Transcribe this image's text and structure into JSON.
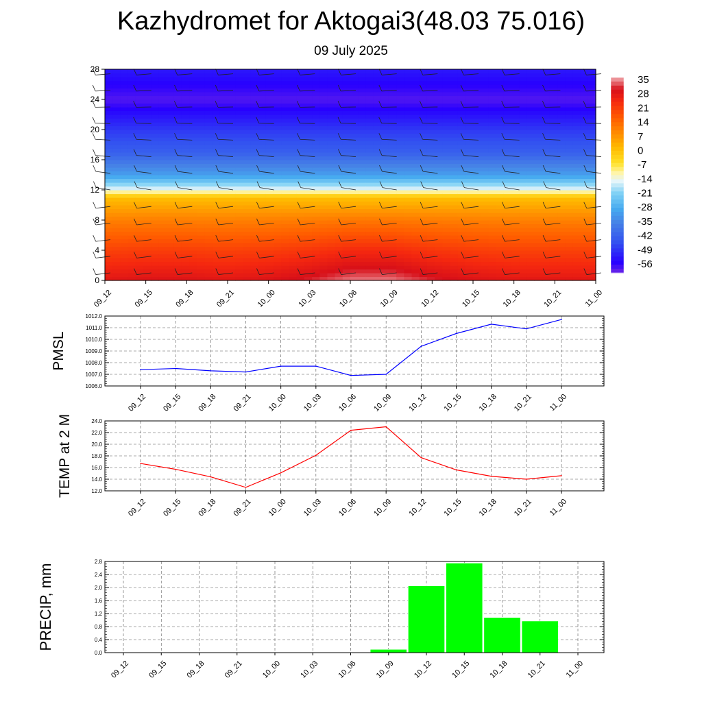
{
  "page": {
    "title": "Kazhydromet for Aktogai3(48.03 75.016)",
    "subtitle": "09 July 2025"
  },
  "chart_data": [
    {
      "id": "upper_air",
      "type": "heatmap",
      "variable": "temperature contours with wind barbs",
      "x": [
        "09_12",
        "09_15",
        "09_18",
        "09_21",
        "10_00",
        "10_03",
        "10_06",
        "10_09",
        "10_12",
        "10_15",
        "10_18",
        "10_21",
        "11_00"
      ],
      "y_ticks": [
        0,
        4,
        8,
        12,
        16,
        20,
        24,
        28
      ],
      "ylim": [
        0,
        28
      ],
      "colorbar": {
        "labels": [
          "35",
          "28",
          "21",
          "14",
          "7",
          "0",
          "-7",
          "-14",
          "-21",
          "-28",
          "-35",
          "-42",
          "-49",
          "-56"
        ],
        "range": [
          -60,
          38
        ]
      },
      "temperature_profile_by_level": [
        {
          "level": 0,
          "temp": 30
        },
        {
          "level": 4,
          "temp": 22
        },
        {
          "level": 8,
          "temp": 12
        },
        {
          "level": 11,
          "temp": 2
        },
        {
          "level": 12,
          "temp": -13
        },
        {
          "level": 14,
          "temp": -30
        },
        {
          "level": 17,
          "temp": -42
        },
        {
          "level": 20,
          "temp": -48
        },
        {
          "level": 22,
          "temp": -53
        },
        {
          "level": 24,
          "temp": -58
        },
        {
          "level": 26,
          "temp": -55
        },
        {
          "level": 28,
          "temp": -52
        }
      ],
      "surface_warming_by_time": [
        0,
        1,
        1,
        0,
        1,
        3,
        6,
        6,
        3,
        1,
        0,
        0,
        0
      ]
    },
    {
      "id": "pmsl",
      "type": "line",
      "ylabel": "PMSL",
      "x": [
        "09_12",
        "09_15",
        "09_18",
        "09_21",
        "10_00",
        "10_03",
        "10_06",
        "10_09",
        "10_12",
        "10_15",
        "10_18",
        "10_21",
        "11_00"
      ],
      "series": [
        {
          "color": "#0000ff",
          "values": [
            1007.4,
            1007.5,
            1007.3,
            1007.2,
            1007.7,
            1007.7,
            1006.9,
            1007.0,
            1009.4,
            1010.5,
            1011.3,
            1010.9,
            1011.7
          ]
        }
      ],
      "ylim": [
        1006.0,
        1012.0
      ],
      "y_ticks": [
        "1006.0",
        "1007.0",
        "1008.0",
        "1009.0",
        "1010.0",
        "1011.0",
        "1012.0"
      ]
    },
    {
      "id": "temp2m",
      "type": "line",
      "ylabel": "TEMP at 2 M",
      "x": [
        "09_12",
        "09_15",
        "09_18",
        "09_21",
        "10_00",
        "10_03",
        "10_06",
        "10_09",
        "10_12",
        "10_15",
        "10_18",
        "10_21",
        "11_00"
      ],
      "series": [
        {
          "color": "#ff0000",
          "values": [
            16.7,
            15.7,
            14.4,
            12.6,
            15.1,
            18.1,
            22.4,
            23.0,
            17.7,
            15.6,
            14.5,
            14.0,
            14.6
          ]
        }
      ],
      "ylim": [
        12.0,
        24.0
      ],
      "y_ticks": [
        "12.0",
        "14.0",
        "16.0",
        "18.0",
        "20.0",
        "22.0",
        "24.0"
      ]
    },
    {
      "id": "precip",
      "type": "bar",
      "ylabel": "PRECIP, mm",
      "x": [
        "09_12",
        "09_15",
        "09_18",
        "09_21",
        "10_00",
        "10_03",
        "10_06",
        "10_09",
        "10_12",
        "10_15",
        "10_18",
        "10_21",
        "11_00"
      ],
      "values": [
        0,
        0,
        0,
        0,
        0,
        0,
        0,
        0.1,
        2.05,
        2.75,
        1.08,
        0.97,
        0
      ],
      "color": "#00ff00",
      "ylim": [
        0.0,
        2.8
      ],
      "y_ticks": [
        "0.0",
        "0.4",
        "0.8",
        "1.2",
        "1.6",
        "2.0",
        "2.4",
        "2.8"
      ]
    }
  ]
}
